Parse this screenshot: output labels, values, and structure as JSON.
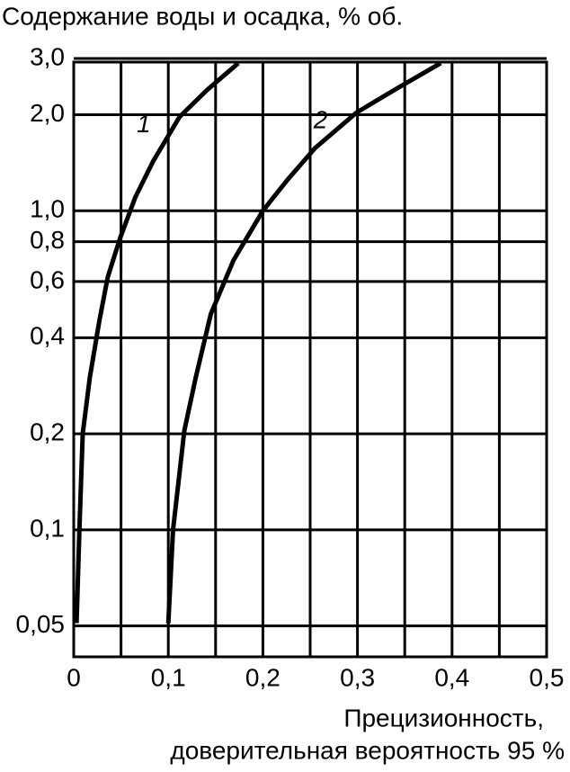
{
  "chart_data": {
    "type": "line",
    "title": "Содержание воды и осадка, % об.",
    "x_label": [
      "Прецизионность,",
      "доверительная вероятность 95 %"
    ],
    "ylog": true,
    "grid": true,
    "color": "#000000",
    "xlim": [
      0,
      0.5
    ],
    "ylim": [
      0.04,
      3
    ],
    "xticks": [
      0,
      {
        "value": 0.1,
        "label": "0,1"
      },
      {
        "value": 0.2,
        "label": "0,2"
      },
      {
        "value": 0.3,
        "label": "0,3"
      },
      {
        "value": 0.4,
        "label": "0,4"
      },
      {
        "value": 0.5,
        "label": "0,5"
      }
    ],
    "x_minor_ticks": [
      0.05,
      0.15,
      0.25,
      0.35,
      0.45
    ],
    "yticks": [
      {
        "value": 0.05,
        "label": "0,05"
      },
      {
        "value": 0.1,
        "label": "0,1"
      },
      {
        "value": 0.2,
        "label": "0,2"
      },
      {
        "value": 0.4,
        "label": "0,4"
      },
      {
        "value": 0.6,
        "label": "0,6"
      },
      {
        "value": 0.8,
        "label": "0,8"
      },
      {
        "value": 1,
        "label": "1,0"
      },
      {
        "value": 2,
        "label": "2,0"
      },
      {
        "value": 3,
        "label": "3,0"
      }
    ],
    "series": [
      {
        "name": "1",
        "color": "#000000",
        "x": [
          0.003,
          0.006,
          0.0095,
          0.017,
          0.027,
          0.036,
          0.049,
          0.065,
          0.084,
          0.112,
          0.141,
          0.174
        ],
        "values": [
          0.051,
          0.1,
          0.2,
          0.3,
          0.45,
          0.62,
          0.82,
          1.1,
          1.43,
          1.97,
          2.39,
          2.9
        ]
      },
      {
        "name": "2",
        "color": "#000000",
        "x": [
          0.1,
          0.105,
          0.117,
          0.129,
          0.145,
          0.169,
          0.2,
          0.226,
          0.255,
          0.299,
          0.34,
          0.388
        ],
        "values": [
          0.051,
          0.1,
          0.205,
          0.3,
          0.475,
          0.7,
          1.0,
          1.25,
          1.57,
          2.03,
          2.4,
          2.9
        ]
      }
    ]
  }
}
